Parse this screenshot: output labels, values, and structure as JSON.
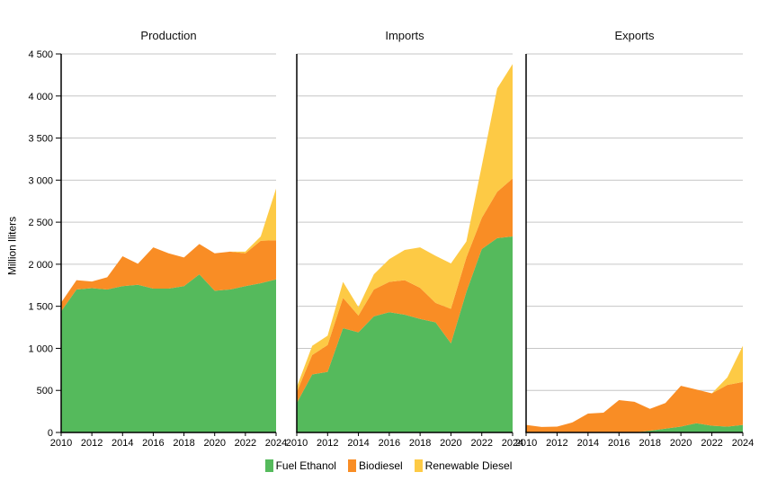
{
  "chart_data": {
    "type": "area",
    "stacked": true,
    "ylabel": "Million lliters",
    "ylim": [
      0,
      4500
    ],
    "ytick_interval": 500,
    "ytick_labels": [
      "0",
      "500",
      "1 000",
      "1 500",
      "2 000",
      "2 500",
      "3 000",
      "3 500",
      "4 000",
      "4 500"
    ],
    "x": [
      2010,
      2011,
      2012,
      2013,
      2014,
      2015,
      2016,
      2017,
      2018,
      2019,
      2020,
      2021,
      2022,
      2023,
      2024
    ],
    "xtick_labels": [
      "2010",
      "2012",
      "2014",
      "2016",
      "2018",
      "2020",
      "2022",
      "2024"
    ],
    "grid": "horizontal",
    "legend": {
      "position": "bottom",
      "entries": [
        {
          "label": "Fuel Ethanol",
          "color": "#55BA5C"
        },
        {
          "label": "Biodiesel",
          "color": "#F98D25"
        },
        {
          "label": "Renewable Diesel",
          "color": "#FDCA45"
        }
      ]
    },
    "colors": {
      "gridline": "#C6C6C6",
      "axis": "#000000",
      "text": "#000000"
    },
    "panels": [
      {
        "title": "Production",
        "series": [
          {
            "name": "Fuel Ethanol",
            "values": [
              1440,
              1700,
              1715,
              1700,
              1740,
              1755,
              1710,
              1710,
              1740,
              1880,
              1685,
              1700,
              1740,
              1775,
              1820
            ]
          },
          {
            "name": "Biodiesel",
            "values": [
              105,
              110,
              80,
              145,
              355,
              250,
              490,
              420,
              340,
              360,
              445,
              450,
              390,
              505,
              465
            ]
          },
          {
            "name": "Renewable Diesel",
            "values": [
              0,
              0,
              0,
              0,
              0,
              0,
              0,
              0,
              0,
              0,
              0,
              0,
              20,
              50,
              615
            ]
          }
        ]
      },
      {
        "title": "Imports",
        "series": [
          {
            "name": "Fuel Ethanol",
            "values": [
              350,
              690,
              720,
              1240,
              1190,
              1380,
              1430,
              1400,
              1350,
              1310,
              1060,
              1670,
              2180,
              2310,
              2330
            ]
          },
          {
            "name": "Biodiesel",
            "values": [
              130,
              230,
              320,
              360,
              200,
              320,
              360,
              410,
              370,
              230,
              410,
              410,
              370,
              550,
              690
            ]
          },
          {
            "name": "Renewable Diesel",
            "values": [
              60,
              110,
              110,
              190,
              100,
              180,
              270,
              360,
              480,
              560,
              540,
              190,
              620,
              1230,
              1360
            ]
          }
        ]
      },
      {
        "title": "Exports",
        "series": [
          {
            "name": "Fuel Ethanol",
            "values": [
              0,
              0,
              0,
              0,
              0,
              0,
              0,
              0,
              20,
              45,
              70,
              110,
              80,
              70,
              90
            ]
          },
          {
            "name": "Biodiesel",
            "values": [
              90,
              65,
              70,
              120,
              225,
              235,
              385,
              365,
              260,
              305,
              485,
              400,
              385,
              495,
              510
            ]
          },
          {
            "name": "Renewable Diesel",
            "values": [
              0,
              0,
              0,
              0,
              0,
              0,
              0,
              0,
              0,
              0,
              0,
              0,
              0,
              90,
              430
            ]
          }
        ]
      }
    ]
  }
}
